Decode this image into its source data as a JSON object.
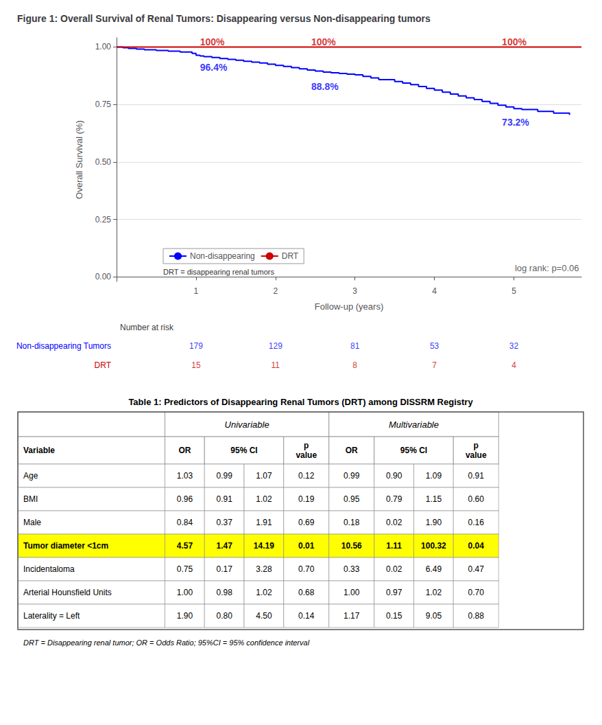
{
  "chart_data": [
    {
      "type": "line",
      "title": "Figure 1: Overall Survival of Renal Tumors: Disappearing versus Non-disappearing tumors",
      "x_label": "Follow-up (years)",
      "y_label": "Overall Survival (%)",
      "series": [
        {
          "name": "Non-disappearing",
          "type": "step",
          "color": "#0000FF",
          "x": [
            0,
            0.08,
            0.15,
            0.25,
            0.35,
            0.5,
            0.65,
            0.8,
            0.95,
            1.0,
            1.05,
            1.1,
            1.2,
            1.3,
            1.4,
            1.5,
            1.6,
            1.7,
            1.8,
            1.9,
            2.0,
            2.1,
            2.2,
            2.3,
            2.4,
            2.5,
            2.6,
            2.7,
            2.8,
            2.9,
            3.0,
            3.1,
            3.2,
            3.3,
            3.5,
            3.6,
            3.7,
            3.8,
            3.9,
            4.0,
            4.1,
            4.2,
            4.3,
            4.4,
            4.5,
            4.6,
            4.7,
            4.8,
            4.9,
            5.0,
            5.1,
            5.3,
            5.5,
            5.7
          ],
          "values": [
            1.0,
            0.997,
            0.994,
            0.991,
            0.988,
            0.985,
            0.982,
            0.978,
            0.972,
            0.964,
            0.961,
            0.958,
            0.954,
            0.95,
            0.946,
            0.942,
            0.938,
            0.934,
            0.93,
            0.925,
            0.92,
            0.915,
            0.91,
            0.905,
            0.9,
            0.895,
            0.891,
            0.888,
            0.885,
            0.882,
            0.879,
            0.872,
            0.865,
            0.858,
            0.85,
            0.843,
            0.836,
            0.828,
            0.82,
            0.812,
            0.803,
            0.795,
            0.787,
            0.779,
            0.771,
            0.763,
            0.755,
            0.747,
            0.739,
            0.732,
            0.728,
            0.72,
            0.712,
            0.705
          ],
          "annotations": [
            {
              "x": 1.05,
              "y": 0.945,
              "text": "96.4%"
            },
            {
              "x": 2.45,
              "y": 0.862,
              "text": "88.8%"
            },
            {
              "x": 4.85,
              "y": 0.705,
              "text": "73.2%"
            }
          ]
        },
        {
          "name": "DRT",
          "type": "line",
          "color": "#CC0000",
          "x": [
            0,
            5.85
          ],
          "values": [
            1.0,
            1.0
          ],
          "annotations": [
            {
              "x": 1.05,
              "y": 0.99,
              "text": "100%"
            },
            {
              "x": 2.45,
              "y": 0.99,
              "text": "100%"
            },
            {
              "x": 4.85,
              "y": 0.99,
              "text": "100%"
            }
          ]
        }
      ],
      "annotations": [
        {
          "x": 5.82,
          "y": 0.02,
          "text": "log rank: p=0.06"
        }
      ],
      "legend_note": "DRT = disappearing renal tumors",
      "xlim": [
        0,
        5.85
      ],
      "xticks": [
        1,
        2,
        3,
        4,
        5
      ],
      "ylim": [
        -0.02,
        1.04
      ],
      "yticks": [
        {
          "value": 0.0,
          "label": "0.00"
        },
        0.25,
        {
          "value": 0.5,
          "label": "0.50"
        },
        0.75,
        {
          "value": 1.0,
          "label": "1.00"
        }
      ],
      "grid": "y",
      "legend": "lower left",
      "risk_table": {
        "title": "Number at risk",
        "x": [
          1,
          2,
          3,
          4,
          5
        ],
        "rows": [
          {
            "name": "Non-disappearing Tumors",
            "color": "#0000FF",
            "values": [
              179,
              129,
              81,
              53,
              32
            ]
          },
          {
            "name": "DRT",
            "color": "#CC0000",
            "values": [
              15,
              11,
              8,
              7,
              4
            ]
          }
        ]
      }
    },
    {
      "type": "table",
      "title": "Table 1: Predictors of Disappearing Renal Tumors (DRT) among DISSRM Registry",
      "column_groups": [
        {
          "label": "Univariable",
          "span": 4
        },
        {
          "label": "Multivariable",
          "span": 4
        }
      ],
      "columns": [
        {
          "label": "Variable"
        },
        {
          "label": "OR"
        },
        {
          "label": "95% CI",
          "span": 2
        },
        {
          "label": "p\nvalue"
        },
        {
          "label": "OR"
        },
        {
          "label": "95% CI",
          "span": 2
        },
        {
          "label": "p\nvalue"
        }
      ],
      "rows": [
        [
          "Age",
          "1.03",
          "0.99",
          "1.07",
          "0.12",
          "0.99",
          "0.90",
          "1.09",
          "0.91"
        ],
        [
          "BMI",
          "0.96",
          "0.91",
          "1.02",
          "0.19",
          "0.95",
          "0.79",
          "1.15",
          "0.60"
        ],
        [
          "Male",
          "0.84",
          "0.37",
          "1.91",
          "0.69",
          "0.18",
          "0.02",
          "1.90",
          "0.16"
        ],
        [
          "Tumor diameter <1cm",
          "4.57",
          "1.47",
          "14.19",
          "0.01",
          "10.56",
          "1.11",
          "100.32",
          "0.04"
        ],
        [
          "Incidentaloma",
          "0.75",
          "0.17",
          "3.28",
          "0.70",
          "0.33",
          "0.02",
          "6.49",
          "0.47"
        ],
        [
          "Arterial Hounsfield Units",
          "1.00",
          "0.98",
          "1.02",
          "0.68",
          "1.00",
          "0.97",
          "1.02",
          "0.70"
        ],
        [
          "Laterality = Left",
          "1.90",
          "0.80",
          "4.50",
          "0.14",
          "1.17",
          "0.15",
          "9.05",
          "0.88"
        ]
      ],
      "highlight_row": 3,
      "highlight_color": "#FFFF00",
      "footer": "DRT = Disappearing renal tumor; OR = Odds Ratio; 95%CI = 95% confidence interval"
    }
  ]
}
